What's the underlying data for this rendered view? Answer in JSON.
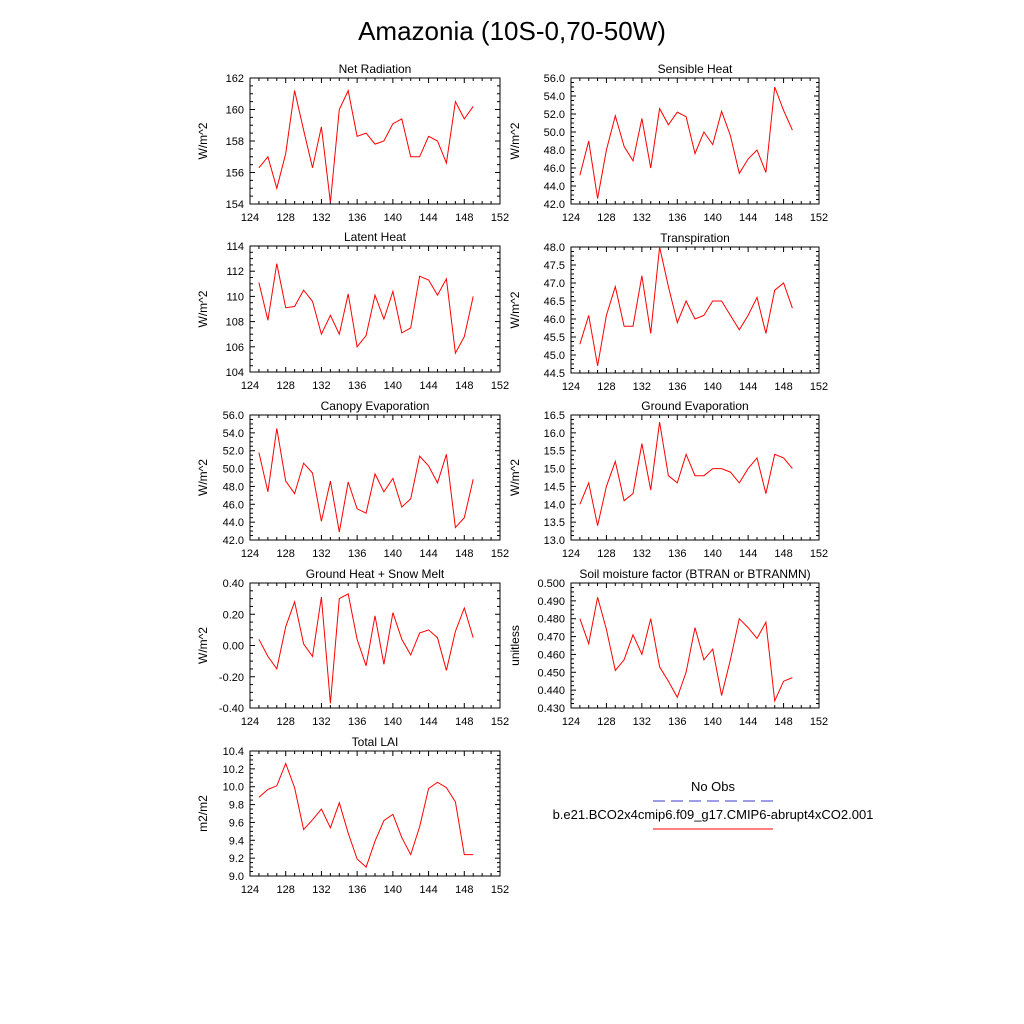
{
  "page_title": "Amazonia (10S-0,70-50W)",
  "legend": {
    "entries": [
      {
        "label": "No Obs",
        "color": "#3a3ad0",
        "style": "dashed"
      },
      {
        "label": "b.e21.BCO2x4cmip6.f09_g17.CMIP6-abrupt4xCO2.001",
        "color": "#ff0000",
        "style": "solid"
      }
    ]
  },
  "chart_data": [
    {
      "type": "line",
      "title": "Net Radiation",
      "ylabel": "W/m^2",
      "xlim": [
        124,
        152
      ],
      "ylim": [
        154,
        162
      ],
      "x_ticks": [
        124,
        128,
        132,
        136,
        140,
        144,
        148,
        152
      ],
      "y_ticks": [
        "154",
        "156",
        "158",
        "160",
        "162"
      ],
      "x": [
        125,
        126,
        127,
        128,
        129,
        130,
        131,
        132,
        133,
        134,
        135,
        136,
        137,
        138,
        139,
        140,
        141,
        142,
        143,
        144,
        145,
        146,
        147,
        148,
        149
      ],
      "values": [
        156.3,
        157.0,
        155.0,
        157.2,
        161.2,
        158.7,
        156.3,
        158.9,
        154.1,
        160.0,
        161.2,
        158.3,
        158.5,
        157.8,
        158.0,
        159.1,
        159.4,
        157.0,
        157.0,
        158.3,
        158.0,
        156.6,
        160.5,
        159.4,
        160.2
      ],
      "series": [
        {
          "color": "#ff0000"
        }
      ]
    },
    {
      "type": "line",
      "title": "Sensible Heat",
      "ylabel": "W/m^2",
      "xlim": [
        124,
        152
      ],
      "ylim": [
        42.0,
        56.0
      ],
      "x_ticks": [
        124,
        128,
        132,
        136,
        140,
        144,
        148,
        152
      ],
      "y_ticks": [
        "42.0",
        "44.0",
        "46.0",
        "48.0",
        "50.0",
        "52.0",
        "54.0",
        "56.0"
      ],
      "x": [
        125,
        126,
        127,
        128,
        129,
        130,
        131,
        132,
        133,
        134,
        135,
        136,
        137,
        138,
        139,
        140,
        141,
        142,
        143,
        144,
        145,
        146,
        147,
        148,
        149
      ],
      "values": [
        45.2,
        49.0,
        42.6,
        48.0,
        51.8,
        48.4,
        46.8,
        51.5,
        46.0,
        52.6,
        50.8,
        52.2,
        51.7,
        47.6,
        50.0,
        48.6,
        52.3,
        49.6,
        45.4,
        47.0,
        48.0,
        45.5,
        55.0,
        52.4,
        50.2
      ],
      "series": [
        {
          "color": "#ff0000"
        }
      ]
    },
    {
      "type": "line",
      "title": "Latent Heat",
      "ylabel": "W/m^2",
      "xlim": [
        124,
        152
      ],
      "ylim": [
        104,
        114
      ],
      "x_ticks": [
        124,
        128,
        132,
        136,
        140,
        144,
        148,
        152
      ],
      "y_ticks": [
        "104",
        "106",
        "108",
        "110",
        "112",
        "114"
      ],
      "x": [
        125,
        126,
        127,
        128,
        129,
        130,
        131,
        132,
        133,
        134,
        135,
        136,
        137,
        138,
        139,
        140,
        141,
        142,
        143,
        144,
        145,
        146,
        147,
        148,
        149
      ],
      "values": [
        111.1,
        108.1,
        112.6,
        109.1,
        109.2,
        110.5,
        109.6,
        107.0,
        108.5,
        107.0,
        110.2,
        106.0,
        106.9,
        110.1,
        108.2,
        110.4,
        107.1,
        107.5,
        111.6,
        111.3,
        110.1,
        111.4,
        105.5,
        106.8,
        110.0
      ],
      "series": [
        {
          "color": "#ff0000"
        }
      ]
    },
    {
      "type": "line",
      "title": "Transpiration",
      "ylabel": "W/m^2",
      "xlim": [
        124,
        152
      ],
      "ylim": [
        44.5,
        48.0
      ],
      "x_ticks": [
        124,
        128,
        132,
        136,
        140,
        144,
        148,
        152
      ],
      "y_ticks": [
        "44.5",
        "45.0",
        "45.5",
        "46.0",
        "46.5",
        "47.0",
        "47.5",
        "48.0"
      ],
      "x": [
        125,
        126,
        127,
        128,
        129,
        130,
        131,
        132,
        133,
        134,
        135,
        136,
        137,
        138,
        139,
        140,
        141,
        142,
        143,
        144,
        145,
        146,
        147,
        148,
        149
      ],
      "values": [
        45.3,
        46.1,
        44.7,
        46.1,
        46.9,
        45.8,
        45.8,
        47.2,
        45.6,
        48.0,
        46.9,
        45.9,
        46.5,
        46.0,
        46.1,
        46.5,
        46.5,
        46.1,
        45.7,
        46.1,
        46.6,
        45.6,
        46.8,
        47.0,
        46.3
      ],
      "series": [
        {
          "color": "#ff0000"
        }
      ]
    },
    {
      "type": "line",
      "title": "Canopy Evaporation",
      "ylabel": "W/m^2",
      "xlim": [
        124,
        152
      ],
      "ylim": [
        42.0,
        56.0
      ],
      "x_ticks": [
        124,
        128,
        132,
        136,
        140,
        144,
        148,
        152
      ],
      "y_ticks": [
        "42.0",
        "44.0",
        "46.0",
        "48.0",
        "50.0",
        "52.0",
        "54.0",
        "56.0"
      ],
      "x": [
        125,
        126,
        127,
        128,
        129,
        130,
        131,
        132,
        133,
        134,
        135,
        136,
        137,
        138,
        139,
        140,
        141,
        142,
        143,
        144,
        145,
        146,
        147,
        148,
        149
      ],
      "values": [
        51.8,
        47.4,
        54.5,
        48.6,
        47.2,
        50.6,
        49.5,
        44.1,
        48.6,
        42.9,
        48.5,
        45.5,
        45.0,
        49.4,
        47.4,
        48.9,
        45.7,
        46.6,
        51.4,
        50.3,
        48.4,
        51.6,
        43.4,
        44.5,
        48.8
      ],
      "series": [
        {
          "color": "#ff0000"
        }
      ]
    },
    {
      "type": "line",
      "title": "Ground Evaporation",
      "ylabel": "W/m^2",
      "xlim": [
        124,
        152
      ],
      "ylim": [
        13.0,
        16.5
      ],
      "x_ticks": [
        124,
        128,
        132,
        136,
        140,
        144,
        148,
        152
      ],
      "y_ticks": [
        "13.0",
        "13.5",
        "14.0",
        "14.5",
        "15.0",
        "15.5",
        "16.0",
        "16.5"
      ],
      "x": [
        125,
        126,
        127,
        128,
        129,
        130,
        131,
        132,
        133,
        134,
        135,
        136,
        137,
        138,
        139,
        140,
        141,
        142,
        143,
        144,
        145,
        146,
        147,
        148,
        149
      ],
      "values": [
        14.0,
        14.6,
        13.4,
        14.5,
        15.2,
        14.1,
        14.3,
        15.7,
        14.4,
        16.3,
        14.8,
        14.6,
        15.4,
        14.8,
        14.8,
        15.0,
        15.0,
        14.9,
        14.6,
        15.0,
        15.3,
        14.3,
        15.4,
        15.3,
        15.0
      ],
      "series": [
        {
          "color": "#ff0000"
        }
      ]
    },
    {
      "type": "line",
      "title": "Ground Heat + Snow Melt",
      "ylabel": "W/m^2",
      "xlim": [
        124,
        152
      ],
      "ylim": [
        -0.4,
        0.4
      ],
      "x_ticks": [
        124,
        128,
        132,
        136,
        140,
        144,
        148,
        152
      ],
      "y_ticks": [
        "-0.40",
        "-0.20",
        "0.00",
        "0.20",
        "0.40"
      ],
      "x": [
        125,
        126,
        127,
        128,
        129,
        130,
        131,
        132,
        133,
        134,
        135,
        136,
        137,
        138,
        139,
        140,
        141,
        142,
        143,
        144,
        145,
        146,
        147,
        148,
        149
      ],
      "values": [
        0.04,
        -0.07,
        -0.15,
        0.12,
        0.28,
        0.01,
        -0.07,
        0.31,
        -0.37,
        0.3,
        0.33,
        0.04,
        -0.13,
        0.19,
        -0.12,
        0.21,
        0.04,
        -0.06,
        0.08,
        0.1,
        0.05,
        -0.16,
        0.09,
        0.24,
        0.05
      ],
      "series": [
        {
          "color": "#ff0000"
        }
      ]
    },
    {
      "type": "line",
      "title": "Soil moisture factor (BTRAN or BTRANMN)",
      "ylabel": "unitless",
      "xlim": [
        124,
        152
      ],
      "ylim": [
        0.43,
        0.5
      ],
      "x_ticks": [
        124,
        128,
        132,
        136,
        140,
        144,
        148,
        152
      ],
      "y_ticks": [
        "0.430",
        "0.440",
        "0.450",
        "0.460",
        "0.470",
        "0.480",
        "0.490",
        "0.500"
      ],
      "x": [
        125,
        126,
        127,
        128,
        129,
        130,
        131,
        132,
        133,
        134,
        135,
        136,
        137,
        138,
        139,
        140,
        141,
        142,
        143,
        144,
        145,
        146,
        147,
        148,
        149
      ],
      "values": [
        0.48,
        0.466,
        0.492,
        0.474,
        0.451,
        0.457,
        0.471,
        0.46,
        0.48,
        0.453,
        0.445,
        0.436,
        0.45,
        0.475,
        0.457,
        0.463,
        0.437,
        0.457,
        0.48,
        0.475,
        0.469,
        0.478,
        0.434,
        0.445,
        0.447
      ],
      "series": [
        {
          "color": "#ff0000"
        }
      ]
    },
    {
      "type": "line",
      "title": "Total LAI",
      "ylabel": "m2/m2",
      "xlim": [
        124,
        152
      ],
      "ylim": [
        9.0,
        10.4
      ],
      "x_ticks": [
        124,
        128,
        132,
        136,
        140,
        144,
        148,
        152
      ],
      "y_ticks": [
        "9.0",
        "9.2",
        "9.4",
        "9.6",
        "9.8",
        "10.0",
        "10.2",
        "10.4"
      ],
      "x": [
        125,
        126,
        127,
        128,
        129,
        130,
        131,
        132,
        133,
        134,
        135,
        136,
        137,
        138,
        139,
        140,
        141,
        142,
        143,
        144,
        145,
        146,
        147,
        148,
        149
      ],
      "values": [
        9.88,
        9.97,
        10.01,
        10.26,
        9.99,
        9.52,
        9.63,
        9.75,
        9.54,
        9.82,
        9.48,
        9.19,
        9.1,
        9.39,
        9.62,
        9.69,
        9.43,
        9.24,
        9.55,
        9.98,
        10.05,
        9.99,
        9.83,
        9.24,
        9.24
      ],
      "series": [
        {
          "color": "#ff0000"
        }
      ]
    }
  ]
}
